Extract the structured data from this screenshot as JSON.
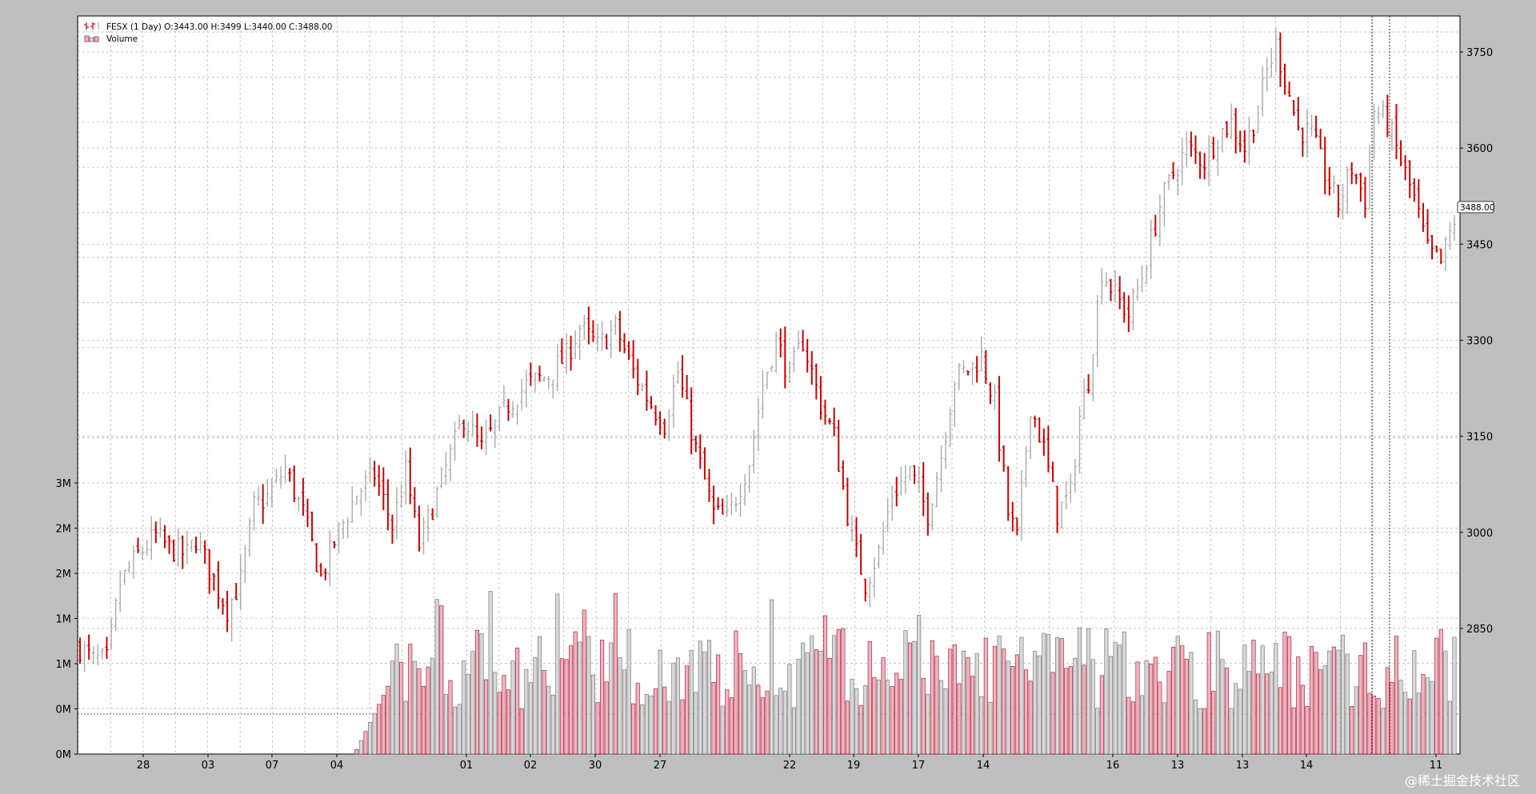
{
  "legend": {
    "ohlc_label": "FESX (1 Day) O:3443.00 H:3499 L:3440.00 C:3488.00",
    "volume_label": "Volume"
  },
  "price_tag": "3488.00",
  "watermark": "@稀土掘金技术社区",
  "colors": {
    "up": "#aaaaaa",
    "down": "#cc0000",
    "volume_up_fill": "#d8d8d8",
    "volume_down_fill": "#f2b3c0",
    "volume_down_edge": "#a3293d",
    "grid": "#b0b0b0",
    "background": "#bfbfbf",
    "plot_bg": "#ffffff"
  },
  "chart_data": {
    "type": "ohlc",
    "title": "",
    "price_axis": {
      "ticks": [
        2850,
        3000,
        3150,
        3300,
        3450,
        3600,
        3750
      ],
      "labels": [
        "2850",
        "3000",
        "3150",
        "3300",
        "3450",
        "3600",
        "3750"
      ]
    },
    "volume_axis": {
      "ticks": [
        0,
        0.5,
        1,
        1.5,
        2,
        2.5,
        3
      ],
      "labels": [
        "0M",
        "0M",
        "1M",
        "1M",
        "2M",
        "2M",
        "3M"
      ]
    },
    "x_ticks": [
      "28",
      "03",
      "07",
      "04",
      "01",
      "02",
      "30",
      "27",
      "22",
      "19",
      "17",
      "14",
      "16",
      "13",
      "13",
      "14",
      "11"
    ],
    "close_keypoints": [
      [
        0,
        2820
      ],
      [
        3,
        2800
      ],
      [
        6,
        2800
      ],
      [
        9,
        2920
      ],
      [
        13,
        2965
      ],
      [
        17,
        2995
      ],
      [
        20,
        2975
      ],
      [
        24,
        2965
      ],
      [
        26,
        2990
      ],
      [
        31,
        2910
      ],
      [
        33,
        2880
      ],
      [
        36,
        2925
      ],
      [
        39,
        3040
      ],
      [
        42,
        3055
      ],
      [
        46,
        3100
      ],
      [
        50,
        3030
      ],
      [
        54,
        2930
      ],
      [
        57,
        2985
      ],
      [
        62,
        3060
      ],
      [
        66,
        3090
      ],
      [
        70,
        3010
      ],
      [
        73,
        3095
      ],
      [
        76,
        2980
      ],
      [
        82,
        3100
      ],
      [
        86,
        3180
      ],
      [
        90,
        3130
      ],
      [
        96,
        3200
      ],
      [
        100,
        3230
      ],
      [
        105,
        3245
      ],
      [
        109,
        3275
      ],
      [
        112,
        3320
      ],
      [
        116,
        3290
      ],
      [
        120,
        3320
      ],
      [
        124,
        3250
      ],
      [
        128,
        3200
      ],
      [
        131,
        3170
      ],
      [
        134,
        3250
      ],
      [
        138,
        3130
      ],
      [
        142,
        3030
      ],
      [
        145,
        3020
      ],
      [
        150,
        3110
      ],
      [
        153,
        3230
      ],
      [
        156,
        3300
      ],
      [
        159,
        3245
      ],
      [
        162,
        3300
      ],
      [
        166,
        3200
      ],
      [
        169,
        3150
      ],
      [
        173,
        2990
      ],
      [
        176,
        2920
      ],
      [
        179,
        2970
      ],
      [
        182,
        3060
      ],
      [
        186,
        3095
      ],
      [
        190,
        3030
      ],
      [
        193,
        3120
      ],
      [
        196,
        3240
      ],
      [
        200,
        3260
      ],
      [
        202,
        3275
      ],
      [
        205,
        3200
      ],
      [
        208,
        3030
      ],
      [
        210,
        2990
      ],
      [
        213,
        3200
      ],
      [
        216,
        3130
      ],
      [
        219,
        3030
      ],
      [
        222,
        3060
      ],
      [
        224,
        3180
      ],
      [
        226,
        3240
      ],
      [
        229,
        3410
      ],
      [
        232,
        3370
      ],
      [
        235,
        3340
      ],
      [
        238,
        3400
      ],
      [
        242,
        3510
      ],
      [
        245,
        3560
      ],
      [
        248,
        3600
      ],
      [
        252,
        3580
      ],
      [
        255,
        3620
      ],
      [
        258,
        3640
      ],
      [
        261,
        3600
      ],
      [
        264,
        3660
      ],
      [
        266,
        3720
      ],
      [
        268,
        3760
      ],
      [
        270,
        3710
      ],
      [
        273,
        3630
      ],
      [
        276,
        3620
      ],
      [
        279,
        3560
      ],
      [
        282,
        3510
      ],
      [
        285,
        3570
      ],
      [
        288,
        3520
      ],
      [
        290,
        3660
      ],
      [
        293,
        3640
      ],
      [
        296,
        3580
      ],
      [
        299,
        3520
      ],
      [
        302,
        3440
      ],
      [
        305,
        3420
      ],
      [
        308,
        3488
      ]
    ],
    "volume_start_bar": 62,
    "n_bars": 309,
    "ylim_price": [
      2750,
      3780
    ],
    "ylim_volume": [
      0,
      3.0
    ]
  }
}
